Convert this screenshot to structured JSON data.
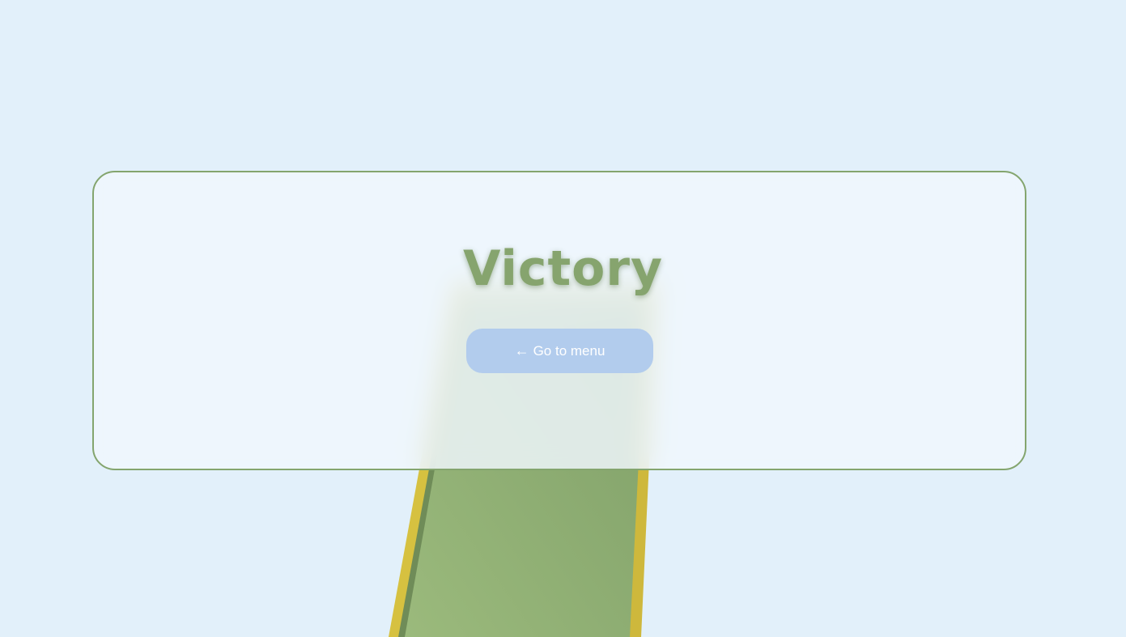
{
  "game": {
    "title": "Victory",
    "menu_button": {
      "arrow": "←",
      "label": "Go to menu"
    }
  },
  "colors": {
    "background": "#e2f0fa",
    "panel_border": "#84a56e",
    "title": "#86a46e",
    "button_bg": "#b2cced",
    "track_green": "#8fae74",
    "track_edge": "#d4bf3e"
  },
  "icons": {
    "menu_arrow": "left-arrow-icon"
  }
}
